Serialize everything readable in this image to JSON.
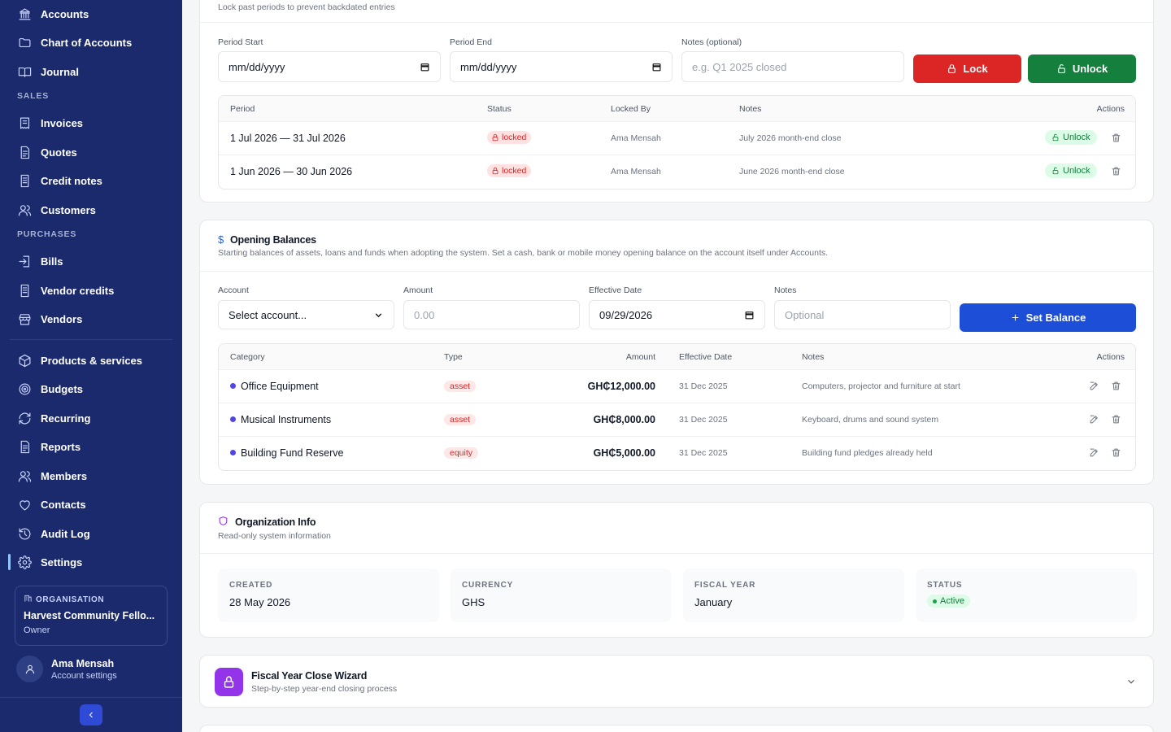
{
  "sidebar": {
    "items_top": [
      {
        "label": "Accounts",
        "icon": "bank-icon"
      },
      {
        "label": "Chart of Accounts",
        "icon": "folder-icon"
      },
      {
        "label": "Journal",
        "icon": "book-icon"
      }
    ],
    "sales_label": "SALES",
    "sales_items": [
      {
        "label": "Invoices",
        "icon": "receipt-icon"
      },
      {
        "label": "Quotes",
        "icon": "document-icon"
      },
      {
        "label": "Credit notes",
        "icon": "document-icon"
      },
      {
        "label": "Customers",
        "icon": "users-icon"
      }
    ],
    "purchases_label": "PURCHASES",
    "purchases_items": [
      {
        "label": "Bills",
        "icon": "bill-icon"
      },
      {
        "label": "Vendor credits",
        "icon": "document-icon"
      },
      {
        "label": "Vendors",
        "icon": "store-icon"
      }
    ],
    "other_items": [
      {
        "label": "Products & services",
        "icon": "package-icon"
      },
      {
        "label": "Budgets",
        "icon": "target-icon"
      },
      {
        "label": "Recurring",
        "icon": "refresh-icon"
      },
      {
        "label": "Reports",
        "icon": "report-icon"
      },
      {
        "label": "Members",
        "icon": "members-icon"
      },
      {
        "label": "Contacts",
        "icon": "heart-icon"
      },
      {
        "label": "Audit Log",
        "icon": "history-icon"
      },
      {
        "label": "Settings",
        "icon": "gear-icon"
      }
    ],
    "org": {
      "label": "ORGANISATION",
      "name": "Harvest Community Fello...",
      "role": "Owner"
    },
    "user": {
      "name": "Ama Mensah",
      "sub": "Account settings"
    }
  },
  "period_lock": {
    "subtitle": "Lock past periods to prevent backdated entries",
    "period_start_label": "Period Start",
    "period_start_value": "mm/dd/yyyy",
    "period_end_label": "Period End",
    "period_end_value": "mm/dd/yyyy",
    "notes_label": "Notes (optional)",
    "notes_placeholder": "e.g. Q1 2025 closed",
    "lock_label": "Lock",
    "unlock_label": "Unlock",
    "columns": [
      "Period",
      "Status",
      "Locked By",
      "Notes",
      "Actions"
    ],
    "rows": [
      {
        "period": "1 Jul 2026 — 31 Jul 2026",
        "status": "locked",
        "locked_by": "Ama Mensah",
        "notes": "July 2026 month-end close",
        "action": "Unlock"
      },
      {
        "period": "1 Jun 2026 — 30 Jun 2026",
        "status": "locked",
        "locked_by": "Ama Mensah",
        "notes": "June 2026 month-end close",
        "action": "Unlock"
      }
    ]
  },
  "opening_balances": {
    "title": "Opening Balances",
    "subtitle": "Starting balances of assets, loans and funds when adopting the system. Set a cash, bank or mobile money opening balance on the account itself under Accounts.",
    "account_label": "Account",
    "account_value": "Select account...",
    "amount_label": "Amount",
    "amount_placeholder": "0.00",
    "date_label": "Effective Date",
    "date_value": "09/29/2026",
    "notes_label": "Notes",
    "notes_placeholder": "Optional",
    "set_label": "Set Balance",
    "columns": [
      "Category",
      "Type",
      "Amount",
      "Effective Date",
      "Notes",
      "Actions"
    ],
    "rows": [
      {
        "category": "Office Equipment",
        "type": "asset",
        "amount": "GH₵12,000.00",
        "date": "31 Dec 2025",
        "notes": "Computers, projector and furniture at start"
      },
      {
        "category": "Musical Instruments",
        "type": "asset",
        "amount": "GH₵8,000.00",
        "date": "31 Dec 2025",
        "notes": "Keyboard, drums and sound system"
      },
      {
        "category": "Building Fund Reserve",
        "type": "equity",
        "amount": "GH₵5,000.00",
        "date": "31 Dec 2025",
        "notes": "Building fund pledges already held"
      }
    ]
  },
  "org_info": {
    "title": "Organization Info",
    "subtitle": "Read-only system information",
    "boxes": [
      {
        "k": "CREATED",
        "v": "28 May 2026"
      },
      {
        "k": "CURRENCY",
        "v": "GHS"
      },
      {
        "k": "FISCAL YEAR",
        "v": "January"
      },
      {
        "k": "STATUS",
        "v": "Active"
      }
    ]
  },
  "fiscal_wizard": {
    "title": "Fiscal Year Close Wizard",
    "subtitle": "Step-by-step year-end closing process"
  },
  "colors": {
    "sidebar": "#1a2a6c",
    "lock": "#dc2626",
    "unlock": "#15803d",
    "primary": "#1d4ed8",
    "wizard": "#9333ea"
  }
}
